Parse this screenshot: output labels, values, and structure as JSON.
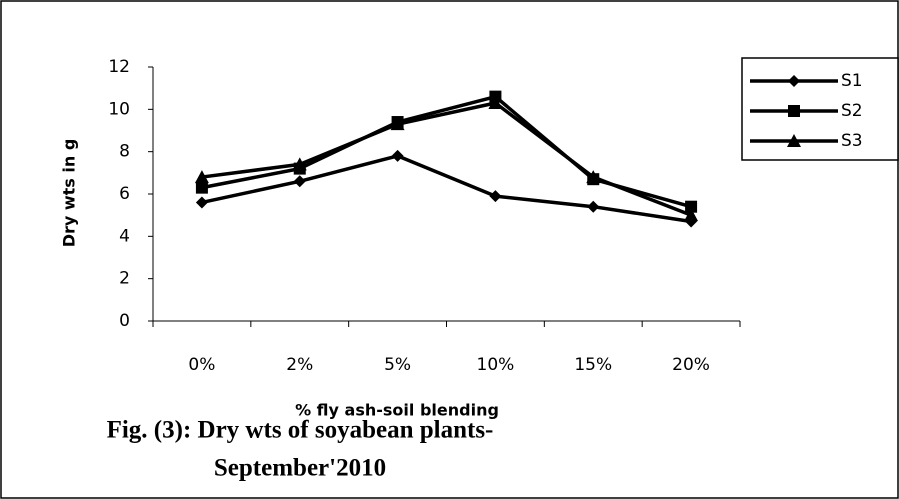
{
  "chart_data": {
    "type": "line",
    "title": [
      "Fig. (3): Dry wts of soyabean plants-",
      "September'2010"
    ],
    "x_label": "% fly ash-soil blending",
    "y_label": "Dry wts in g",
    "categories": [
      "0%",
      "2%",
      "5%",
      "10%",
      "15%",
      "20%"
    ],
    "series": [
      {
        "name": "S1",
        "color": "#000000",
        "marker": "diamond",
        "values": [
          5.6,
          6.6,
          7.8,
          5.9,
          5.4,
          4.7
        ]
      },
      {
        "name": "S2",
        "color": "#000000",
        "marker": "square",
        "values": [
          6.3,
          7.2,
          9.4,
          10.6,
          6.7,
          5.4
        ]
      },
      {
        "name": "S3",
        "color": "#000000",
        "marker": "triangle",
        "values": [
          6.8,
          7.4,
          9.3,
          10.3,
          6.8,
          5.0
        ]
      }
    ],
    "ylim": [
      0,
      12
    ],
    "yticks": [
      0,
      2,
      4,
      6,
      8,
      10,
      12
    ],
    "grid": false,
    "legend": "top-right"
  }
}
